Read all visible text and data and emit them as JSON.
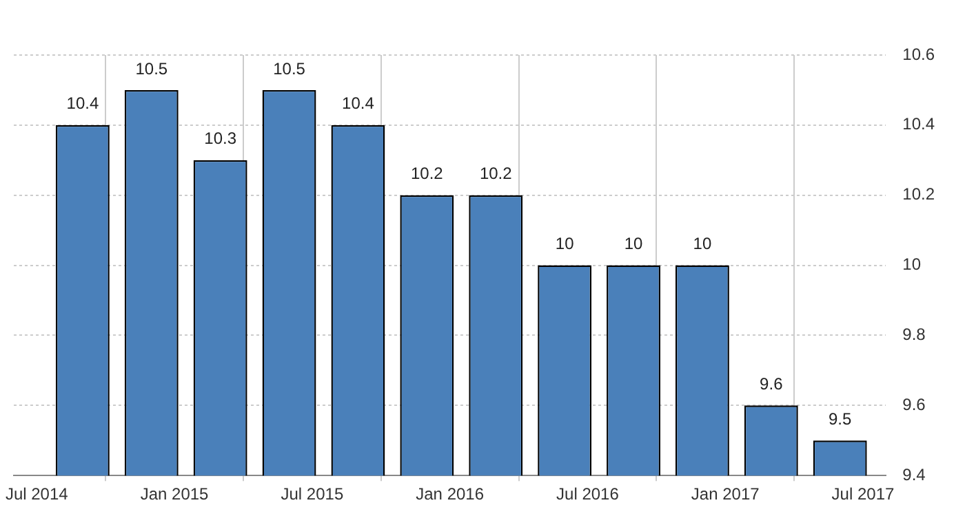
{
  "chart_data": {
    "type": "bar",
    "x": [
      "2014-09",
      "2014-12",
      "2015-03",
      "2015-06",
      "2015-09",
      "2015-12",
      "2016-03",
      "2016-06",
      "2016-09",
      "2016-12",
      "2017-03",
      "2017-06"
    ],
    "values": [
      10.4,
      10.5,
      10.3,
      10.5,
      10.4,
      10.2,
      10.2,
      10,
      10,
      10,
      9.6,
      9.5
    ],
    "color": "#4a80ba",
    "xlim": [
      "2014-06",
      "2017-08"
    ],
    "xticks": [
      {
        "value": "2014-07",
        "label": "Jul 2014"
      },
      {
        "value": "2015-01",
        "label": "Jan 2015"
      },
      {
        "value": "2015-07",
        "label": "Jul 2015"
      },
      {
        "value": "2016-01",
        "label": "Jan 2016"
      },
      {
        "value": "2016-07",
        "label": "Jul 2016"
      },
      {
        "value": "2017-01",
        "label": "Jan 2017"
      },
      {
        "value": "2017-07",
        "label": "Jul 2017"
      }
    ],
    "ylim": [
      9.4,
      10.6
    ],
    "yticks": [
      9.4,
      9.6,
      9.8,
      10,
      10.2,
      10.4,
      10.6
    ],
    "grid": true,
    "data_labels": true,
    "legend": false
  }
}
